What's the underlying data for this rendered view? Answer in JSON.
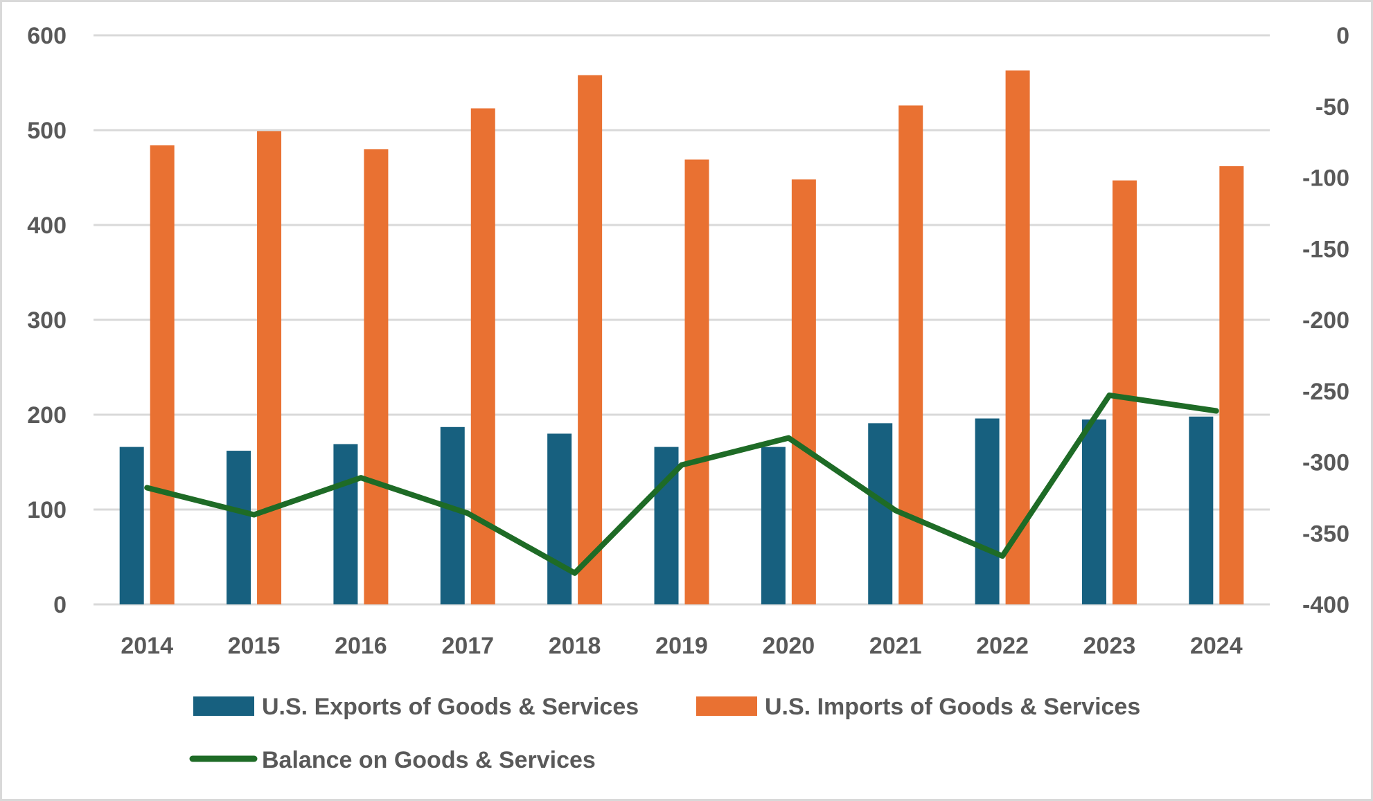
{
  "chart_data": {
    "type": "bar",
    "title": "",
    "xlabel": "",
    "ylabel": "",
    "y2label": "",
    "categories": [
      "2014",
      "2015",
      "2016",
      "2017",
      "2018",
      "2019",
      "2020",
      "2021",
      "2022",
      "2023",
      "2024"
    ],
    "ylim": [
      0,
      600
    ],
    "yticks": [
      0,
      100,
      200,
      300,
      400,
      500,
      600
    ],
    "y2lim": [
      -400,
      0
    ],
    "y2ticks": [
      0,
      -50,
      -100,
      -150,
      -200,
      -250,
      -300,
      -350,
      -400
    ],
    "grid": true,
    "legend_position": "bottom",
    "series": [
      {
        "name": "U.S. Exports of Goods & Services",
        "type": "bar",
        "axis": "left",
        "color": "#17607f",
        "values": [
          166,
          162,
          169,
          187,
          180,
          166,
          166,
          191,
          196,
          195,
          198
        ]
      },
      {
        "name": "U.S. Imports of Goods & Services",
        "type": "bar",
        "axis": "left",
        "color": "#e97132",
        "values": [
          484,
          499,
          480,
          523,
          558,
          469,
          448,
          526,
          563,
          447,
          462
        ]
      },
      {
        "name": "Balance on Goods & Services",
        "type": "line",
        "axis": "right",
        "color": "#1e6b26",
        "values": [
          -318,
          -337,
          -311,
          -336,
          -378,
          -302,
          -283,
          -334,
          -366,
          -253,
          -264
        ]
      }
    ]
  }
}
